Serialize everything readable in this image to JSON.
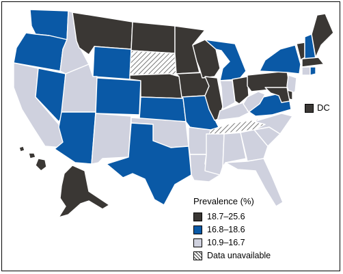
{
  "legend": {
    "title": "Prevalence (%)",
    "items": [
      {
        "label": "18.7–25.6",
        "color": "#3a3734",
        "pattern": false
      },
      {
        "label": "16.8–18.6",
        "color": "#0a59a6",
        "pattern": false
      },
      {
        "label": "10.9–16.7",
        "color": "#cfd1de",
        "pattern": false
      },
      {
        "label": "Data unavailable",
        "color": "#ffffff",
        "pattern": true
      }
    ]
  },
  "dc": {
    "label": "DC",
    "category": "high"
  },
  "colors": {
    "high": "#3a3734",
    "mid": "#0a59a6",
    "low": "#cfd1de",
    "na": "hatch",
    "border": "#ffffff"
  },
  "states": {
    "WA": "mid",
    "OR": "mid",
    "CA": "low",
    "NV": "mid",
    "ID": "low",
    "MT": "high",
    "WY": "mid",
    "UT": "low",
    "AZ": "mid",
    "CO": "mid",
    "NM": "low",
    "ND": "high",
    "SD": "na",
    "NE": "high",
    "KS": "mid",
    "OK": "low",
    "TX": "mid",
    "MN": "high",
    "IA": "high",
    "MO": "mid",
    "AR": "low",
    "LA": "low",
    "WI": "high",
    "IL": "high",
    "MI": "mid",
    "IN": "low",
    "OH": "high",
    "KY": "low",
    "TN": "na",
    "MS": "low",
    "AL": "low",
    "GA": "low",
    "FL": "low",
    "SC": "low",
    "NC": "low",
    "VA": "mid",
    "WV": "low",
    "PA": "high",
    "NY": "mid",
    "NJ": "low",
    "DE": "high",
    "MD": "high",
    "VT": "high",
    "NH": "mid",
    "ME": "high",
    "MA": "high",
    "CT": "low",
    "RI": "mid",
    "AK": "high",
    "HI": "high"
  }
}
